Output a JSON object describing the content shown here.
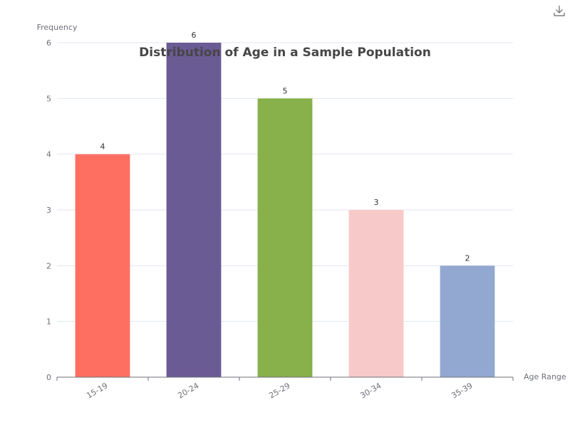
{
  "chart_data": {
    "type": "bar",
    "title": "Distribution of Age in a Sample Population",
    "xlabel": "Age Range",
    "ylabel": "Frequency",
    "categories": [
      "15-19",
      "20-24",
      "25-29",
      "30-34",
      "35-39"
    ],
    "values": [
      4,
      6,
      5,
      3,
      2
    ],
    "colors": [
      "#ff6f61",
      "#6b5b95",
      "#88b04b",
      "#f7cac9",
      "#92a8d1"
    ],
    "ylim": [
      0,
      6
    ],
    "yticks": [
      0,
      1,
      2,
      3,
      4,
      5,
      6
    ],
    "grid": true,
    "data_labels": true
  },
  "toolbox": {
    "icon": "download-icon"
  }
}
